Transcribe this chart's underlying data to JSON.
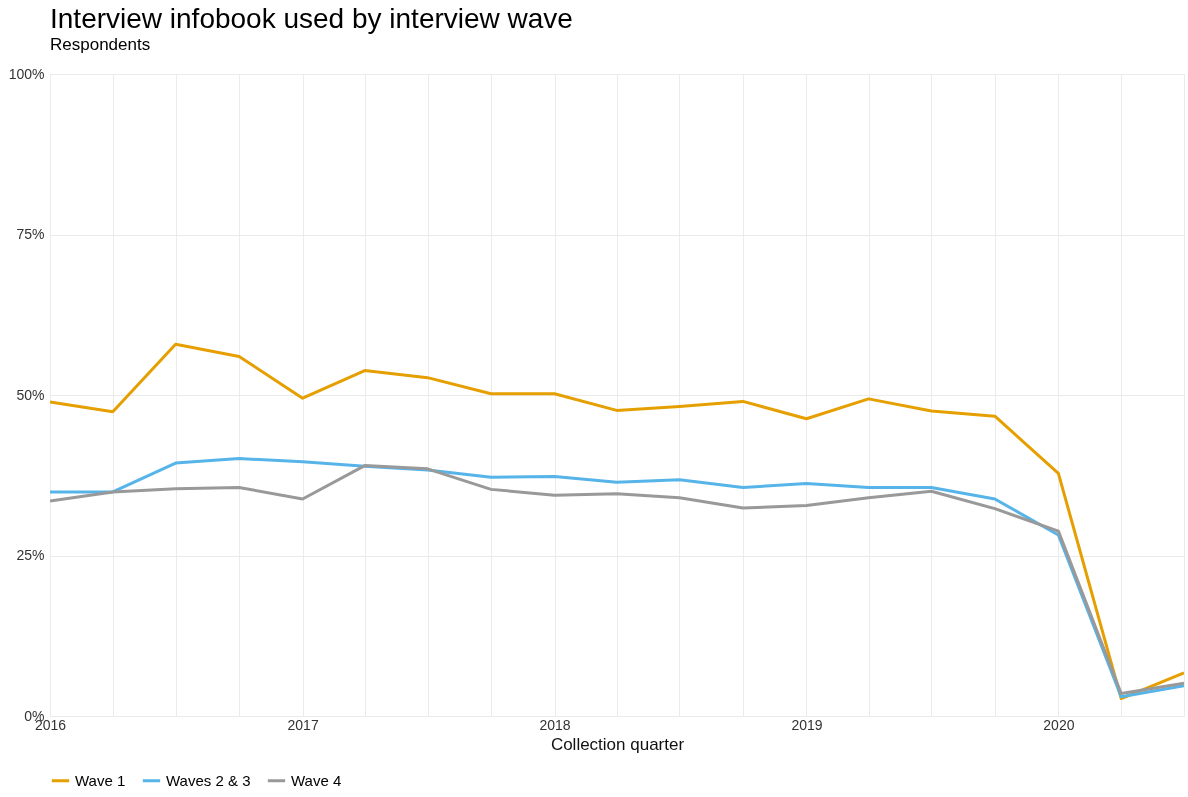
{
  "chart_data": {
    "type": "line",
    "title": "Interview infobook used by interview wave",
    "subtitle": "Respondents",
    "xlabel": "Collection quarter",
    "x": [
      "2016-01",
      "2016-04",
      "2016-07",
      "2016-10",
      "2017-01",
      "2017-04",
      "2017-07",
      "2017-10",
      "2018-01",
      "2018-04",
      "2018-07",
      "2018-10",
      "2019-01",
      "2019-04",
      "2019-07",
      "2019-10",
      "2020-01",
      "2020-04",
      "2020-07"
    ],
    "series": [
      {
        "name": "Wave 1",
        "color": "#e69f00",
        "values": [
          48.9,
          47.4,
          57.9,
          56.0,
          49.5,
          53.8,
          52.7,
          50.2,
          50.2,
          47.6,
          48.2,
          49.0,
          46.3,
          49.4,
          47.5,
          46.7,
          37.8,
          2.7,
          6.7
        ]
      },
      {
        "name": "Waves 2 & 3",
        "color": "#56b4e9",
        "values": [
          34.9,
          34.9,
          39.4,
          40.1,
          39.6,
          38.9,
          38.3,
          37.2,
          37.3,
          36.4,
          36.8,
          35.6,
          36.2,
          35.6,
          35.6,
          33.8,
          28.2,
          3.0,
          4.7
        ]
      },
      {
        "name": "Wave 4",
        "color": "#999999",
        "values": [
          33.5,
          34.9,
          35.4,
          35.6,
          33.8,
          39.0,
          38.5,
          35.3,
          34.4,
          34.6,
          34.0,
          32.4,
          32.8,
          34.0,
          35.0,
          32.3,
          28.8,
          3.5,
          5.1
        ]
      }
    ],
    "xlim": [
      "2016-01",
      "2020-07"
    ],
    "xticks": [
      {
        "value": "2016-01",
        "label": "2016"
      },
      {
        "value": "2016-04",
        "label": null
      },
      {
        "value": "2016-07",
        "label": null
      },
      {
        "value": "2016-10",
        "label": null
      },
      {
        "value": "2017-01",
        "label": "2017"
      },
      {
        "value": "2017-04",
        "label": null
      },
      {
        "value": "2017-07",
        "label": null
      },
      {
        "value": "2017-10",
        "label": null
      },
      {
        "value": "2018-01",
        "label": "2018"
      },
      {
        "value": "2018-04",
        "label": null
      },
      {
        "value": "2018-07",
        "label": null
      },
      {
        "value": "2018-10",
        "label": null
      },
      {
        "value": "2019-01",
        "label": "2019"
      },
      {
        "value": "2019-04",
        "label": null
      },
      {
        "value": "2019-07",
        "label": null
      },
      {
        "value": "2019-10",
        "label": null
      },
      {
        "value": "2020-01",
        "label": "2020"
      },
      {
        "value": "2020-04",
        "label": null
      },
      {
        "value": "2020-07",
        "label": null
      }
    ],
    "ylim": [
      0,
      100
    ],
    "yticks": [
      {
        "value": 0,
        "label": "0%"
      },
      {
        "value": 25,
        "label": "25%"
      },
      {
        "value": 50,
        "label": "50%"
      },
      {
        "value": 75,
        "label": "75%"
      },
      {
        "value": 100,
        "label": "100%"
      }
    ],
    "grid": true,
    "legend": "bottom",
    "line_style": "solid",
    "marker": "none"
  }
}
